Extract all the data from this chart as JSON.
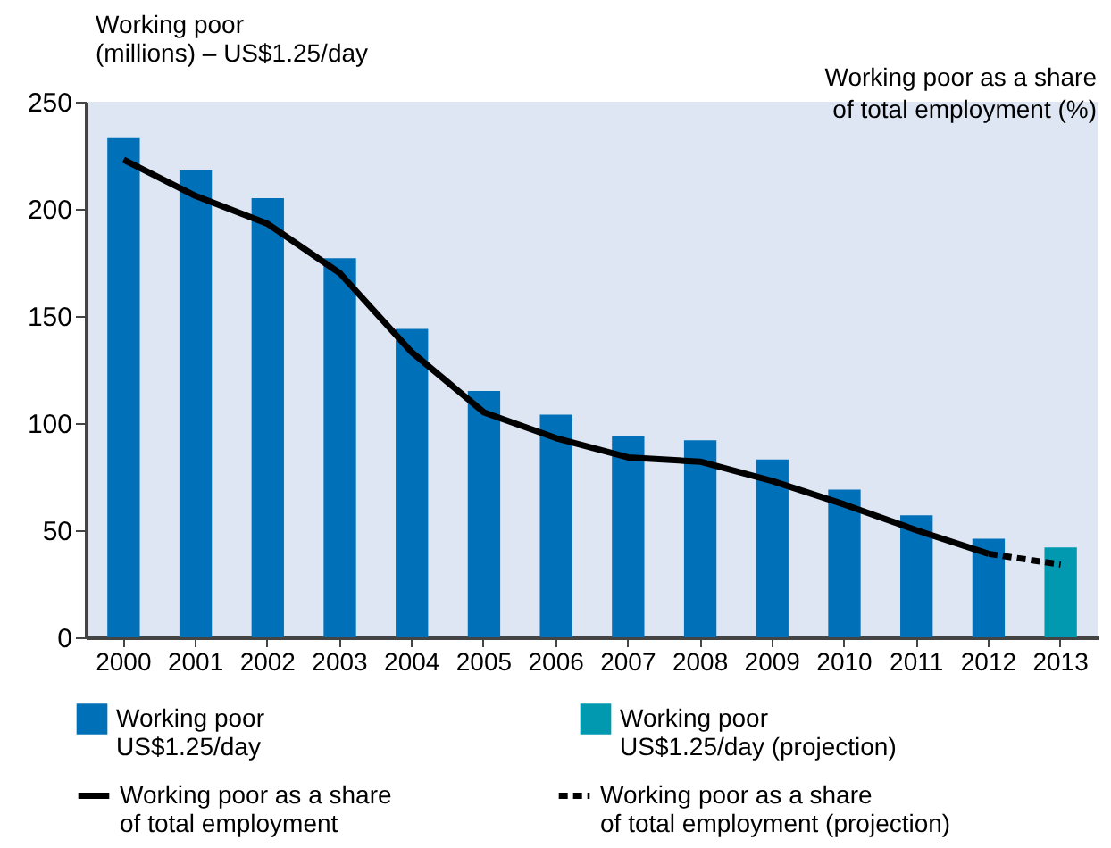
{
  "chart_data": {
    "type": "bar",
    "ylabel": "Working poor (millions) – US$1.25/day",
    "y2label": "Working poor as a share of total employment (%)",
    "categories": [
      "2000",
      "2001",
      "2002",
      "2003",
      "2004",
      "2005",
      "2006",
      "2007",
      "2008",
      "2009",
      "2010",
      "2011",
      "2012",
      "2013"
    ],
    "series": [
      {
        "name": "Working poor US$1.25/day",
        "color": "#0070b8",
        "values": [
          233,
          218,
          205,
          177,
          144,
          115,
          104,
          94,
          92,
          83,
          69,
          57,
          46,
          null
        ]
      },
      {
        "name": "Working poor US$1.25/day (projection)",
        "color": "#0099b0",
        "values": [
          null,
          null,
          null,
          null,
          null,
          null,
          null,
          null,
          null,
          null,
          null,
          null,
          null,
          42
        ]
      },
      {
        "name": "Working poor as a share of total employment",
        "type": "line",
        "color": "#000000",
        "line_style": "solid",
        "values": [
          223,
          206,
          193,
          170,
          133,
          105,
          93,
          84,
          82,
          73,
          62,
          50,
          39,
          null
        ]
      },
      {
        "name": "Working poor as a share of total employment (projection)",
        "type": "line",
        "color": "#000000",
        "line_style": "dashed",
        "values": [
          null,
          null,
          null,
          null,
          null,
          null,
          null,
          null,
          null,
          null,
          null,
          null,
          39,
          34
        ]
      }
    ],
    "ylim": [
      0,
      250
    ],
    "yticks": [
      0,
      50,
      100,
      150,
      200,
      250
    ],
    "grid": false,
    "legend": "bottom"
  }
}
